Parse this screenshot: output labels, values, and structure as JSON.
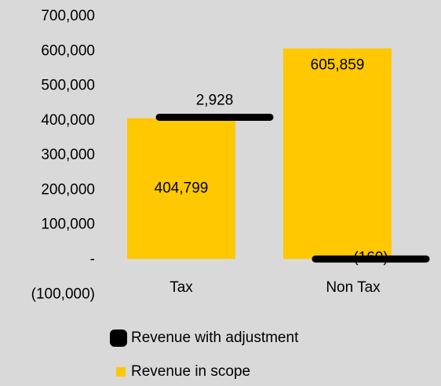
{
  "chart_data": {
    "type": "stacked_bar",
    "categories": [
      "Tax",
      "Non Tax"
    ],
    "series": [
      {
        "name": "Revenue in scope",
        "color": "#ffc800",
        "values": [
          404799,
          605859
        ],
        "value_labels": [
          "404,799",
          "605,859"
        ]
      },
      {
        "name": "Revenue with adjustment",
        "color": "#000000",
        "values": [
          2928,
          -160
        ],
        "value_labels": [
          "2,928",
          "(160)"
        ]
      }
    ],
    "ylim": [
      -100000,
      700000
    ],
    "yticks": [
      {
        "value": -100000,
        "label": "(100,000)"
      },
      {
        "value": 0,
        "label": "-"
      },
      {
        "value": 100000,
        "label": "100,000"
      },
      {
        "value": 200000,
        "label": "200,000"
      },
      {
        "value": 300000,
        "label": "300,000"
      },
      {
        "value": 400000,
        "label": "400,000"
      },
      {
        "value": 500000,
        "label": "500,000"
      },
      {
        "value": 600000,
        "label": "600,000"
      },
      {
        "value": 700000,
        "label": "700,000"
      }
    ],
    "legend": "bottom"
  }
}
